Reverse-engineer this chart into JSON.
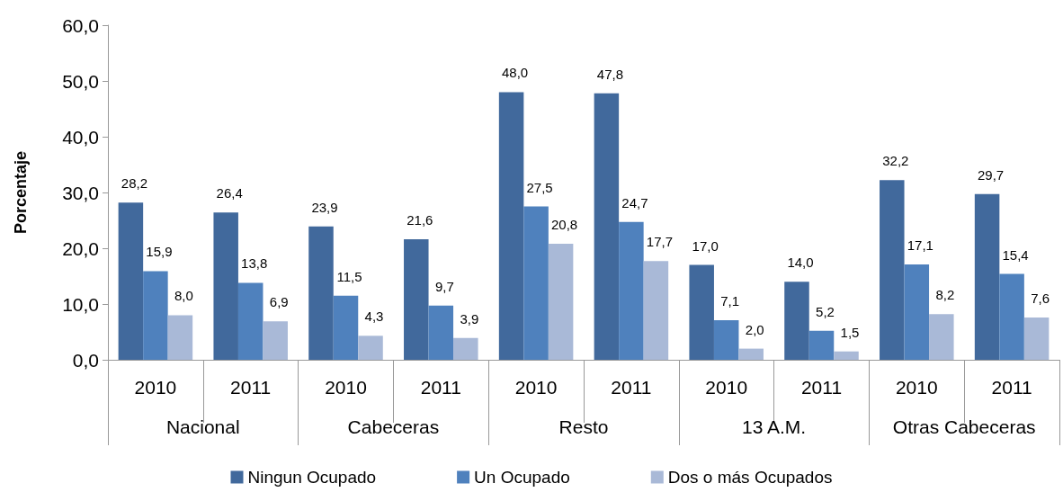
{
  "chart_data": {
    "type": "bar",
    "ylabel": "Porcentaje",
    "categories": [
      "2010",
      "2011",
      "2010",
      "2011",
      "2010",
      "2011",
      "2010",
      "2011",
      "2010",
      "2011"
    ],
    "annotations": [
      "Nacional",
      "Cabeceras",
      "Resto",
      "13 A.M.",
      "Otras Cabeceras"
    ],
    "series": [
      {
        "name": "Ningun Ocupado",
        "color": "#41699c",
        "values": [
          28.2,
          26.4,
          23.9,
          21.6,
          48.0,
          47.8,
          17.0,
          14.0,
          32.2,
          29.7
        ],
        "value_labels": [
          "28,2",
          "26,4",
          "23,9",
          "21,6",
          "48,0",
          "47,8",
          "17,0",
          "14,0",
          "32,2",
          "29,7"
        ]
      },
      {
        "name": "Un Ocupado",
        "color": "#4f81bd",
        "values": [
          15.9,
          13.8,
          11.5,
          9.7,
          27.5,
          24.7,
          7.1,
          5.2,
          17.1,
          15.4
        ],
        "value_labels": [
          "15,9",
          "13,8",
          "11,5",
          "9,7",
          "27,5",
          "24,7",
          "7,1",
          "5,2",
          "17,1",
          "15,4"
        ]
      },
      {
        "name": "Dos o más Ocupados",
        "color": "#a9b9d7",
        "values": [
          8.0,
          6.9,
          4.3,
          3.9,
          20.8,
          17.7,
          2.0,
          1.5,
          8.2,
          7.6
        ],
        "value_labels": [
          "8,0",
          "6,9",
          "4,3",
          "3,9",
          "20,8",
          "17,7",
          "2,0",
          "1,5",
          "8,2",
          "7,6"
        ]
      }
    ],
    "ylim": [
      0,
      60
    ],
    "yticks": [
      {
        "value": 0,
        "label": "0,0"
      },
      {
        "value": 10,
        "label": "10,0"
      },
      {
        "value": 20,
        "label": "20,0"
      },
      {
        "value": 30,
        "label": "30,0"
      },
      {
        "value": 40,
        "label": "40,0"
      },
      {
        "value": 50,
        "label": "50,0"
      },
      {
        "value": 60,
        "label": "60,0"
      }
    ],
    "grid": false,
    "legend": "bottom"
  }
}
